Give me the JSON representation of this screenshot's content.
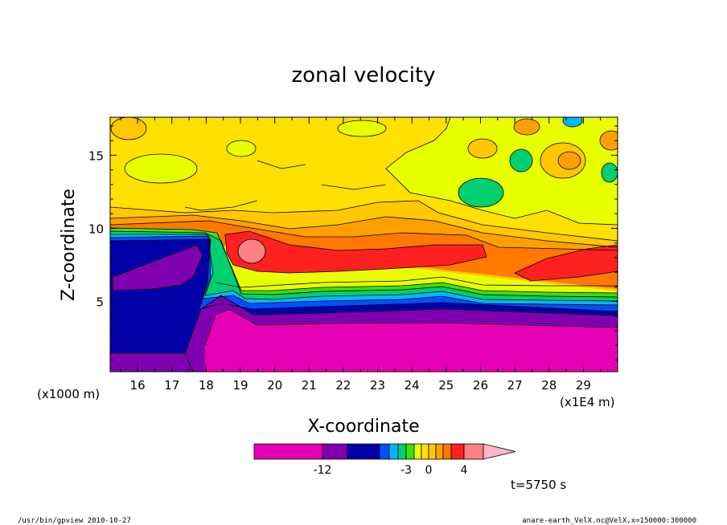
{
  "chart_data": {
    "type": "heatmap",
    "title": "zonal velocity",
    "xlabel": "X-coordinate",
    "ylabel": "Z-coordinate",
    "x_unit": "(x1E4 m)",
    "y_unit": "(x1000 m)",
    "x_ticks": [
      "16",
      "17",
      "18",
      "19",
      "20",
      "21",
      "22",
      "23",
      "24",
      "25",
      "26",
      "27",
      "28",
      "29"
    ],
    "y_ticks": [
      "5",
      "10",
      "15"
    ],
    "xlim": [
      15.2,
      30.0
    ],
    "ylim": [
      0.2,
      17.6
    ],
    "colorbar": {
      "levels": [
        -12,
        -9,
        -6,
        -5,
        -4,
        -3,
        -2,
        -1,
        0,
        1,
        2,
        3,
        4,
        6
      ],
      "colors": [
        "#e600b4",
        "#8000b0",
        "#0000a8",
        "#0050ff",
        "#00b8ff",
        "#00d070",
        "#40e000",
        "#e8ff00",
        "#ffe000",
        "#ffc800",
        "#ffa000",
        "#ff7800",
        "#ff2020",
        "#ff8080",
        "#ffb6c8"
      ],
      "tick_labels": [
        "-12",
        "-3",
        "0",
        "4"
      ],
      "tick_values": [
        -12,
        -3,
        0,
        4
      ]
    },
    "time_label": "t=5750 s"
  },
  "footer": {
    "left": "/usr/bin/gpview   2010-10-27",
    "right": "anare-earth_VelX.nc@VelX,x=150000:300000"
  }
}
